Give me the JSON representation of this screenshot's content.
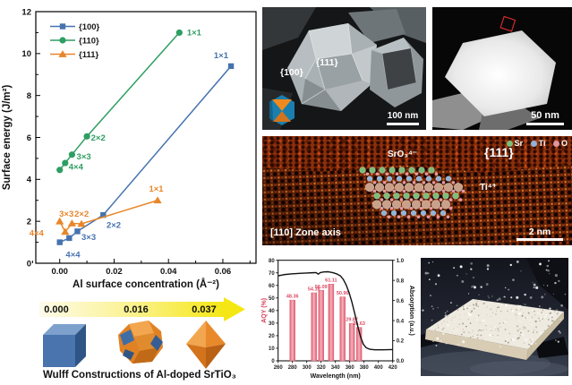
{
  "wulff": {
    "values": [
      "0.000",
      "0.016",
      "0.037"
    ],
    "caption": "Wulff Constructions of Al-doped SrTiO₃"
  },
  "sem1": {
    "facet_left": "{100}",
    "facet_right": "{111}",
    "scale_bar": "100 nm"
  },
  "sem2": {
    "scale_bar": "50 nm"
  },
  "hrtem": {
    "species": "SrO₃⁴⁻",
    "facet": "{111}",
    "ion": "Ti⁴⁺",
    "zone_axis": "[110] Zone axis",
    "scale_bar": "2 nm",
    "legend": [
      {
        "name": "Sr",
        "color": "#7cbd7a"
      },
      {
        "name": "Ti",
        "color": "#8fb4dc"
      },
      {
        "name": "O",
        "color": "#e4939e"
      }
    ]
  },
  "chart_data": [
    {
      "type": "line",
      "title": "",
      "xlabel": "Al surface concentration (Å⁻²)",
      "ylabel": "Surface energy (J/m²)",
      "xlim": [
        -0.0088,
        0.0722
      ],
      "ylim": [
        0,
        12
      ],
      "xticks": [
        0.0,
        0.02,
        0.04,
        0.06
      ],
      "yticks": [
        0,
        2,
        4,
        6,
        8,
        10,
        12
      ],
      "grid": false,
      "legend_position": "top-left",
      "series": [
        {
          "name": "{100}",
          "color": "#4673ae",
          "marker": "square",
          "points": [
            [
              0.0,
              1.0
            ],
            [
              0.0035,
              1.2
            ],
            [
              0.0065,
              1.52
            ],
            [
              0.016,
              2.3
            ],
            [
              0.063,
              9.4
            ]
          ],
          "labels": [
            {
              "text": "4×4",
              "x": 0.0022,
              "y": 0.42,
              "anchor": "start"
            },
            {
              "text": "3×3",
              "x": 0.008,
              "y": 1.26,
              "anchor": "start"
            },
            {
              "text": "2×2",
              "x": 0.0172,
              "y": 1.83,
              "anchor": "start"
            },
            {
              "text": "1×1",
              "x": 0.062,
              "y": 9.92,
              "anchor": "end"
            }
          ]
        },
        {
          "name": "{110}",
          "color": "#2e9e62",
          "marker": "circle",
          "points": [
            [
              0.0,
              4.45
            ],
            [
              0.002,
              4.78
            ],
            [
              0.0045,
              5.18
            ],
            [
              0.01,
              6.05
            ],
            [
              0.044,
              11.0
            ]
          ],
          "labels": [
            {
              "text": "4×4",
              "x": 0.0033,
              "y": 4.6,
              "anchor": "start"
            },
            {
              "text": "3×3",
              "x": 0.0062,
              "y": 5.1,
              "anchor": "start"
            },
            {
              "text": "2×2",
              "x": 0.0115,
              "y": 6.0,
              "anchor": "start"
            },
            {
              "text": "1×1",
              "x": 0.0468,
              "y": 11.0,
              "anchor": "start"
            }
          ]
        },
        {
          "name": "{111}",
          "color": "#e8862a",
          "marker": "triangle",
          "points": [
            [
              0.0,
              2.0
            ],
            [
              0.002,
              1.5
            ],
            [
              0.0045,
              1.9
            ],
            [
              0.008,
              1.88
            ],
            [
              0.036,
              3.0
            ]
          ],
          "labels": [
            {
              "text": "4×4",
              "x": -0.0112,
              "y": 1.45,
              "anchor": "start"
            },
            {
              "text": "3×3",
              "x": -0.0002,
              "y": 2.36,
              "anchor": "start"
            },
            {
              "text": "2×2",
              "x": 0.0054,
              "y": 2.36,
              "anchor": "start"
            },
            {
              "text": "1×1",
              "x": 0.0355,
              "y": 3.55,
              "anchor": "middle"
            }
          ]
        }
      ]
    },
    {
      "type": "bar",
      "xlabel": "Wavelength (nm)",
      "ylabel_left": "AQY (%)",
      "ylabel_right": "Absorption (a.u.)",
      "xlim": [
        260,
        420
      ],
      "xtick_step": 20,
      "ylim_left": [
        0,
        80
      ],
      "ytick_step_left": 10,
      "ylim_right": [
        0.0,
        1.0
      ],
      "ytick_step_right": 0.2,
      "bars": {
        "wavelengths": [
          280,
          310,
          320,
          334,
          350,
          363,
          373
        ],
        "aqy_percent": [
          48.36,
          54.16,
          56.09,
          61.11,
          50.9,
          29.87,
          26.63
        ],
        "labels": [
          "48.36",
          "54.16",
          "56.09",
          "61.11",
          "50.90",
          "29.87",
          "26.63"
        ]
      },
      "bar_colors": {
        "edge": "#dd5a6f",
        "center": "#f5b3bd",
        "label": "#dd4a64"
      },
      "axis_label_color_left": "#d9405a",
      "absorption_curve": [
        [
          260,
          0.845
        ],
        [
          268,
          0.857
        ],
        [
          278,
          0.864
        ],
        [
          290,
          0.87
        ],
        [
          300,
          0.873
        ],
        [
          308,
          0.876
        ],
        [
          313,
          0.878
        ],
        [
          316,
          0.862
        ],
        [
          319,
          0.878
        ],
        [
          324,
          0.884
        ],
        [
          330,
          0.886
        ],
        [
          336,
          0.878
        ],
        [
          342,
          0.864
        ],
        [
          347,
          0.845
        ],
        [
          351,
          0.81
        ],
        [
          355,
          0.755
        ],
        [
          359,
          0.68
        ],
        [
          363,
          0.585
        ],
        [
          367,
          0.47
        ],
        [
          371,
          0.35
        ],
        [
          375,
          0.24
        ],
        [
          379,
          0.165
        ],
        [
          383,
          0.13
        ],
        [
          388,
          0.115
        ],
        [
          395,
          0.11
        ],
        [
          405,
          0.11
        ],
        [
          420,
          0.112
        ]
      ]
    }
  ]
}
